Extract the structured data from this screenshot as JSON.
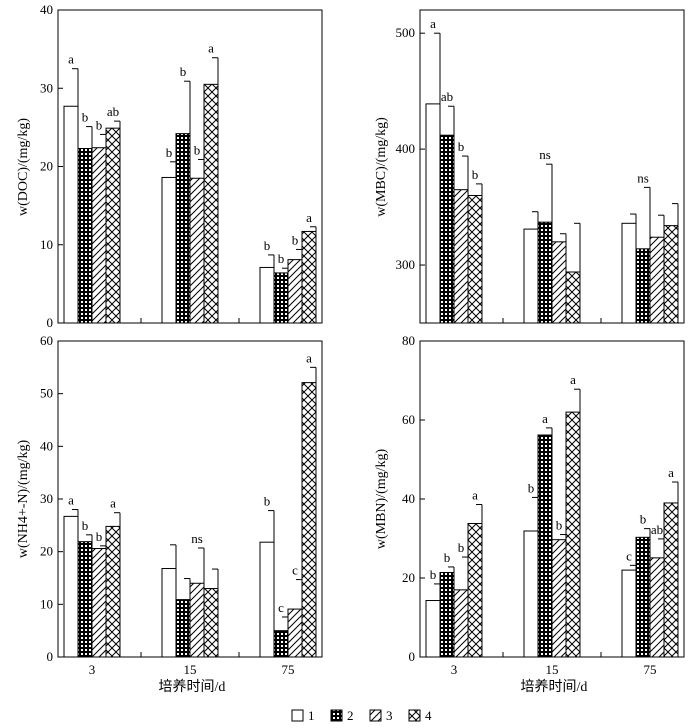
{
  "chart_data": [
    {
      "type": "bar",
      "ylabel": "w(DOC)/(mg/kg)",
      "xlabel": "",
      "ylim": [
        0,
        40
      ],
      "yticks": [
        0,
        10,
        20,
        30,
        40
      ],
      "categories": [
        "3",
        "15",
        "75"
      ],
      "series": [
        {
          "name": "1",
          "values": [
            27.7,
            18.6,
            7.1
          ],
          "errors": [
            4.8,
            2.0,
            1.6
          ]
        },
        {
          "name": "2",
          "values": [
            22.3,
            24.2,
            6.4
          ],
          "errors": [
            2.8,
            6.7,
            0.6
          ]
        },
        {
          "name": "3",
          "values": [
            22.4,
            18.5,
            8.1
          ],
          "errors": [
            1.7,
            2.4,
            1.3
          ]
        },
        {
          "name": "4",
          "values": [
            24.9,
            30.5,
            11.7
          ],
          "errors": [
            0.9,
            3.4,
            0.6
          ]
        }
      ],
      "sig": [
        [
          "a",
          "b",
          "b",
          "ab"
        ],
        [
          "b",
          "b",
          "b",
          "a"
        ],
        [
          "b",
          "b",
          "b",
          "a"
        ]
      ]
    },
    {
      "type": "bar",
      "ylabel": "w(MBC)/(mg/kg)",
      "xlabel": "",
      "ylim": [
        250,
        520
      ],
      "yticks": [
        300,
        400,
        500
      ],
      "categories": [
        "3",
        "15",
        "75"
      ],
      "series": [
        {
          "name": "1",
          "values": [
            439,
            331,
            336
          ],
          "errors": [
            61,
            15,
            8
          ]
        },
        {
          "name": "2",
          "values": [
            412,
            337,
            314
          ],
          "errors": [
            25,
            50,
            53
          ]
        },
        {
          "name": "3",
          "values": [
            365,
            320,
            324
          ],
          "errors": [
            29,
            7,
            19
          ]
        },
        {
          "name": "4",
          "values": [
            360,
            294,
            334
          ],
          "errors": [
            10,
            42,
            19
          ]
        }
      ],
      "sig": [
        [
          "a",
          "ab",
          "b",
          "b"
        ],
        [
          "",
          "ns",
          "",
          ""
        ],
        [
          "",
          "ns",
          "",
          ""
        ]
      ]
    },
    {
      "type": "bar",
      "ylabel": "w(NH4+-N)/(mg/kg)",
      "xlabel": "培养时间/d",
      "ylim": [
        0,
        60
      ],
      "yticks": [
        0,
        10,
        20,
        30,
        40,
        50,
        60
      ],
      "categories": [
        "3",
        "15",
        "75"
      ],
      "series": [
        {
          "name": "1",
          "values": [
            26.7,
            16.8,
            21.8
          ],
          "errors": [
            1.3,
            4.5,
            6.0
          ]
        },
        {
          "name": "2",
          "values": [
            21.9,
            10.9,
            5.0
          ],
          "errors": [
            1.3,
            4.0,
            2.6
          ]
        },
        {
          "name": "3",
          "values": [
            20.6,
            14.0,
            9.1
          ],
          "errors": [
            0.5,
            6.7,
            5.6
          ]
        },
        {
          "name": "4",
          "values": [
            24.8,
            13.0,
            52.1
          ],
          "errors": [
            2.6,
            3.7,
            2.9
          ]
        }
      ],
      "sig": [
        [
          "a",
          "b",
          "b",
          "a"
        ],
        [
          "",
          "",
          "ns",
          ""
        ],
        [
          "b",
          "c",
          "c",
          "a"
        ]
      ]
    },
    {
      "type": "bar",
      "ylabel": "w(MBN)/(mg/kg)",
      "xlabel": "培养时间/d",
      "ylim": [
        0,
        80
      ],
      "yticks": [
        0,
        20,
        40,
        60,
        80
      ],
      "categories": [
        "3",
        "15",
        "75"
      ],
      "series": [
        {
          "name": "1",
          "values": [
            14.3,
            31.9,
            22.0
          ],
          "errors": [
            4.2,
            8.5,
            1.2
          ]
        },
        {
          "name": "2",
          "values": [
            21.4,
            56.2,
            30.3
          ],
          "errors": [
            1.4,
            1.8,
            2.2
          ]
        },
        {
          "name": "3",
          "values": [
            17.0,
            29.7,
            25.1
          ],
          "errors": [
            8.3,
            1.3,
            4.8
          ]
        },
        {
          "name": "4",
          "values": [
            33.8,
            62.0,
            39.0
          ],
          "errors": [
            4.8,
            5.8,
            5.3
          ]
        }
      ],
      "sig": [
        [
          "b",
          "b",
          "b",
          "a"
        ],
        [
          "b",
          "a",
          "b",
          "a"
        ],
        [
          "c",
          "b",
          "ab",
          "a"
        ]
      ]
    }
  ],
  "legend": [
    "1",
    "2",
    "3",
    "4"
  ]
}
